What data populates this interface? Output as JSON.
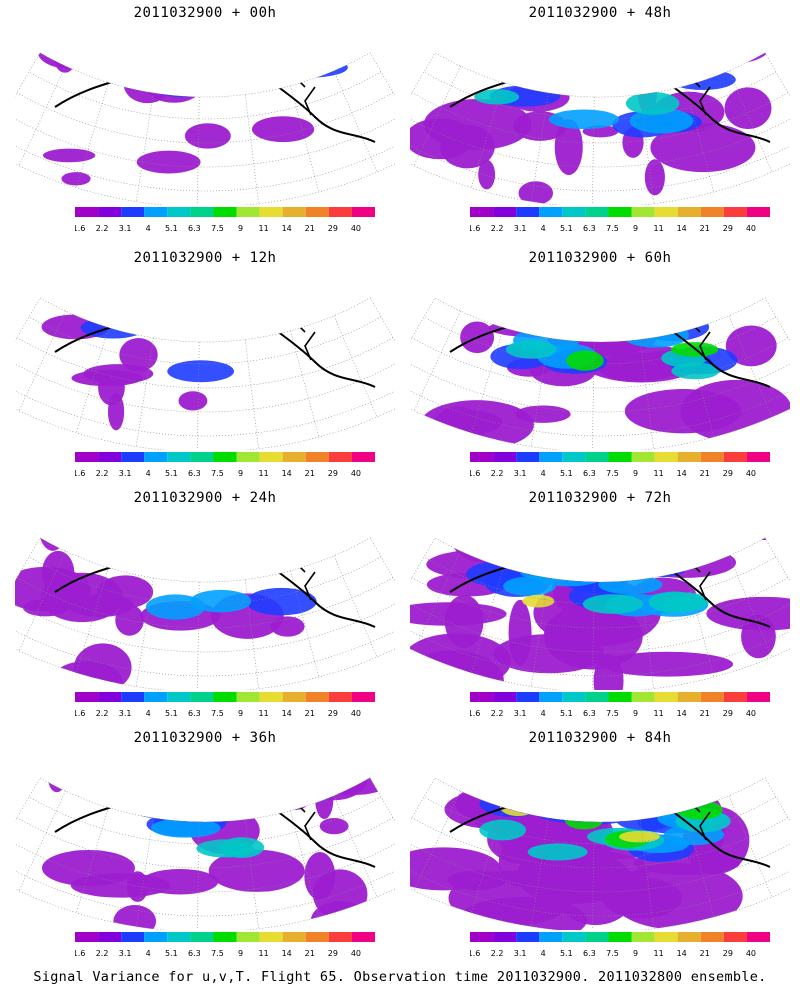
{
  "panels": [
    {
      "title": "2011032900 + 00h",
      "intensity": 0.12
    },
    {
      "title": "2011032900 + 48h",
      "intensity": 0.55
    },
    {
      "title": "2011032900 + 12h",
      "intensity": 0.18
    },
    {
      "title": "2011032900 + 60h",
      "intensity": 0.62
    },
    {
      "title": "2011032900 + 24h",
      "intensity": 0.35
    },
    {
      "title": "2011032900 + 72h",
      "intensity": 0.8
    },
    {
      "title": "2011032900 + 36h",
      "intensity": 0.48
    },
    {
      "title": "2011032900 + 84h",
      "intensity": 0.9
    }
  ],
  "colorbar": {
    "labels": [
      "1.6",
      "2.2",
      "3.1",
      "4",
      "5.1",
      "6.3",
      "7.5",
      "9",
      "11",
      "14",
      "21",
      "29",
      "40"
    ],
    "colors": [
      "#a000c8",
      "#8200dc",
      "#1e3cff",
      "#00a0ff",
      "#00c8c8",
      "#00d28c",
      "#00dc00",
      "#a0e632",
      "#e6dc32",
      "#e6af2d",
      "#f08228",
      "#fa3c3c",
      "#f00082"
    ]
  },
  "footer": "Signal Variance for u,v,T. Flight 65. Observation time 2011032900. 2011032800 ensemble."
}
